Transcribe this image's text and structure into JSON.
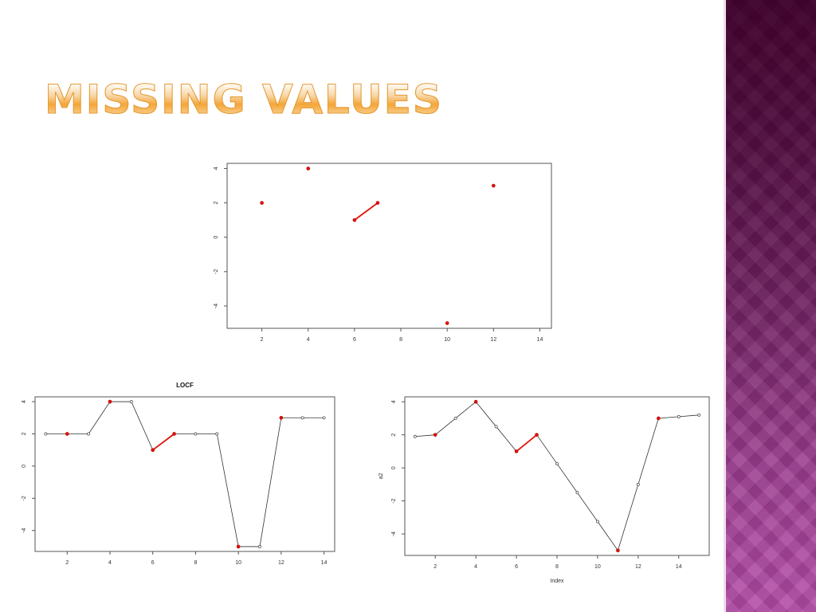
{
  "slide": {
    "title": "Missing Values"
  },
  "colors": {
    "accent_point": "#e3120b",
    "line": "#333333",
    "band": "#7b2b6e"
  },
  "chart_data": [
    {
      "id": "top",
      "type": "scatter",
      "title": "",
      "xlabel": "",
      "ylabel": "",
      "xlim": [
        0.5,
        14.5
      ],
      "ylim": [
        -5.3,
        4.3
      ],
      "xticks": [
        2,
        4,
        6,
        8,
        10,
        12,
        14
      ],
      "yticks": [
        -4,
        -2,
        0,
        2,
        4
      ],
      "grid": false,
      "series": [
        {
          "style": "red",
          "x": [
            2,
            4,
            6,
            7,
            10,
            12
          ],
          "y": [
            2,
            4,
            1,
            2,
            -5,
            3
          ],
          "red_segments": [
            [
              6,
              7
            ]
          ]
        }
      ]
    },
    {
      "id": "locf",
      "type": "line",
      "title": "LOCF",
      "xlabel": "",
      "ylabel": "",
      "xlim": [
        0.5,
        14.5
      ],
      "ylim": [
        -5.3,
        4.3
      ],
      "xticks": [
        2,
        4,
        6,
        8,
        10,
        12,
        14
      ],
      "yticks": [
        -4,
        -2,
        0,
        2,
        4
      ],
      "grid": false,
      "series": [
        {
          "style": "black-line",
          "x": [
            1,
            2,
            3,
            4,
            5,
            6,
            7,
            8,
            9,
            10,
            11,
            12,
            13,
            14
          ],
          "y": [
            2,
            2,
            2,
            4,
            4,
            1,
            2,
            2,
            2,
            -5,
            -5,
            3,
            3,
            3
          ]
        },
        {
          "style": "red",
          "x": [
            2,
            4,
            6,
            7,
            10,
            12
          ],
          "y": [
            2,
            4,
            1,
            2,
            -5,
            3
          ],
          "red_segments": [
            [
              6,
              7
            ]
          ]
        }
      ]
    },
    {
      "id": "interp",
      "type": "line",
      "title": "",
      "xlabel": "Index",
      "ylabel": "a2",
      "xlim": [
        0.5,
        15.5
      ],
      "ylim": [
        -5.3,
        4.3
      ],
      "xticks": [
        2,
        4,
        6,
        8,
        10,
        12,
        14
      ],
      "yticks": [
        -4,
        -2,
        0,
        2,
        4
      ],
      "grid": false,
      "series": [
        {
          "style": "black-line",
          "x": [
            1,
            2,
            3,
            4,
            5,
            6,
            7,
            8,
            9,
            10,
            11,
            12,
            13,
            14,
            15
          ],
          "y": [
            1.9,
            2,
            3,
            4,
            2.5,
            1,
            2,
            0.25,
            -1.5,
            -3.25,
            -5,
            -1,
            3,
            3.1,
            3.2
          ]
        },
        {
          "style": "red",
          "x": [
            2,
            4,
            6,
            7,
            11,
            13
          ],
          "y": [
            2,
            4,
            1,
            2,
            -5,
            3
          ],
          "red_segments": [
            [
              6,
              7
            ]
          ]
        }
      ]
    }
  ]
}
